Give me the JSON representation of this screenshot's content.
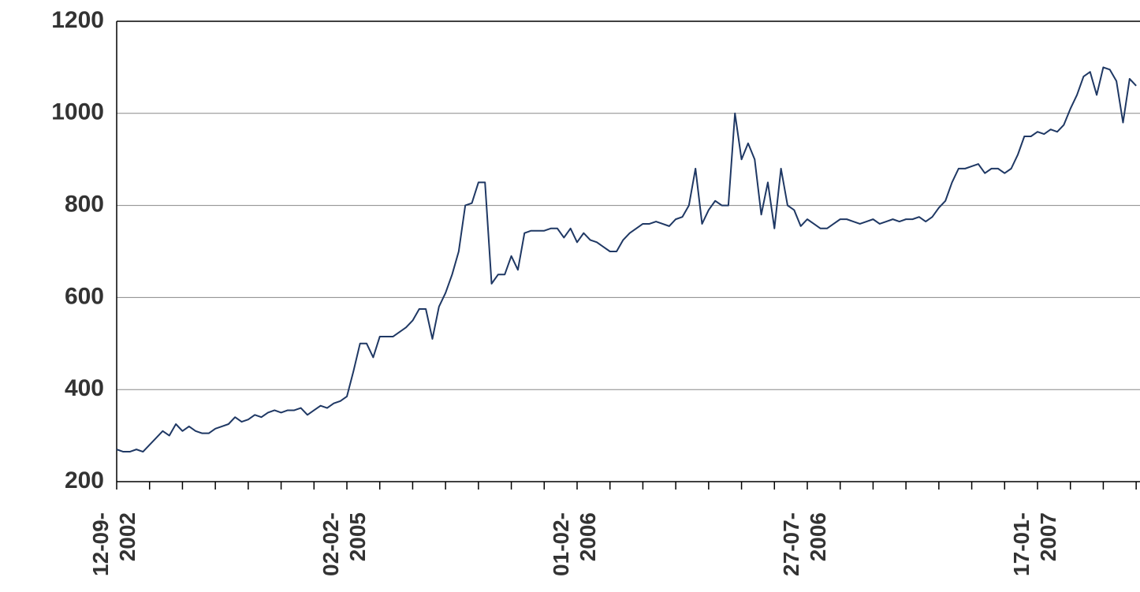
{
  "chart_data": {
    "type": "line",
    "categories": [
      "12-09-2002",
      null,
      null,
      null,
      null,
      null,
      null,
      null,
      null,
      null,
      null,
      null,
      null,
      null,
      null,
      null,
      null,
      null,
      null,
      null,
      null,
      null,
      null,
      null,
      null,
      null,
      null,
      null,
      null,
      null,
      null,
      null,
      null,
      null,
      null,
      "02-02-2005",
      null,
      null,
      null,
      null,
      null,
      null,
      null,
      null,
      null,
      null,
      null,
      null,
      null,
      null,
      null,
      null,
      null,
      null,
      null,
      null,
      null,
      null,
      null,
      null,
      null,
      null,
      null,
      null,
      null,
      null,
      null,
      null,
      null,
      null,
      "01-02-2006",
      null,
      null,
      null,
      null,
      null,
      null,
      null,
      null,
      null,
      null,
      null,
      null,
      null,
      null,
      null,
      null,
      null,
      null,
      null,
      null,
      null,
      null,
      null,
      null,
      null,
      null,
      null,
      null,
      null,
      null,
      null,
      null,
      null,
      null,
      "27-07-2006",
      null,
      null,
      null,
      null,
      null,
      null,
      null,
      null,
      null,
      null,
      null,
      null,
      null,
      null,
      null,
      null,
      null,
      null,
      null,
      null,
      null,
      null,
      null,
      null,
      null,
      null,
      null,
      null,
      null,
      null,
      null,
      null,
      null,
      null,
      "17-01-2007",
      null,
      null,
      null,
      null,
      null,
      null,
      null,
      null,
      null,
      null,
      null,
      null,
      null,
      null,
      null
    ],
    "series": [
      {
        "color": "#1f3864",
        "values": [
          270,
          265,
          265,
          270,
          265,
          280,
          295,
          310,
          300,
          325,
          310,
          320,
          310,
          305,
          305,
          315,
          320,
          325,
          340,
          330,
          335,
          345,
          340,
          350,
          355,
          350,
          355,
          355,
          360,
          345,
          355,
          365,
          360,
          370,
          375,
          385,
          440,
          500,
          500,
          470,
          515,
          515,
          515,
          525,
          535,
          550,
          575,
          575,
          510,
          580,
          610,
          650,
          700,
          800,
          805,
          850,
          850,
          630,
          650,
          650,
          690,
          660,
          740,
          745,
          745,
          745,
          750,
          750,
          730,
          750,
          720,
          740,
          725,
          720,
          710,
          700,
          700,
          725,
          740,
          750,
          760,
          760,
          765,
          760,
          755,
          770,
          775,
          800,
          880,
          760,
          790,
          810,
          800,
          800,
          1000,
          900,
          935,
          900,
          780,
          850,
          750,
          880,
          800,
          790,
          755,
          770,
          760,
          750,
          750,
          760,
          770,
          770,
          765,
          760,
          765,
          770,
          760,
          765,
          770,
          765,
          770,
          770,
          775,
          765,
          775,
          795,
          810,
          850,
          880,
          880,
          885,
          890,
          870,
          880,
          880,
          870,
          880,
          910,
          950,
          950,
          960,
          955,
          965,
          960,
          975,
          1010,
          1040,
          1080,
          1090,
          1040,
          1100,
          1095,
          1070,
          980,
          1075,
          1060
        ]
      }
    ],
    "ylim": [
      200,
      1200
    ],
    "yticks": [
      200,
      400,
      600,
      800,
      1000,
      1200
    ],
    "grid": true
  }
}
